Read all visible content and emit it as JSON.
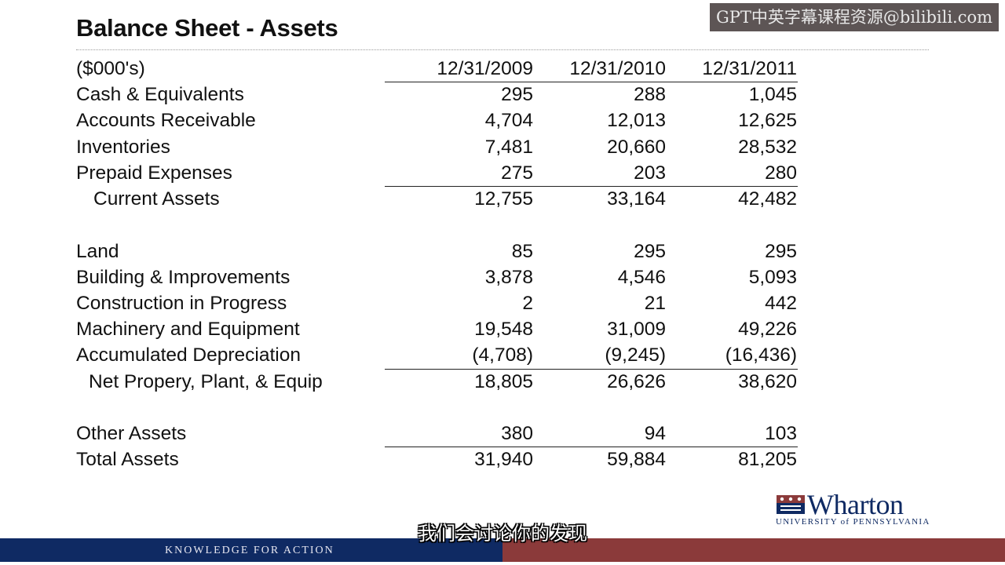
{
  "slide": {
    "title": "Balance Sheet - Assets",
    "watermark": "GPT中英字幕课程资源@bilibili.com",
    "subtitle": "我们会讨论你的发现",
    "footer_text": "KNOWLEDGE FOR ACTION",
    "logo": {
      "word": "Wharton",
      "sub": "UNIVERSITY of PENNSYLVANIA"
    }
  },
  "table": {
    "header": {
      "label": "($000's)",
      "cols": [
        "12/31/2009",
        "12/31/2010",
        "12/31/2011"
      ]
    },
    "rows": [
      {
        "label": "Cash & Equivalents",
        "values": [
          "295",
          "288",
          "1,045"
        ]
      },
      {
        "label": "Accounts Receivable",
        "values": [
          "4,704",
          "12,013",
          "12,625"
        ]
      },
      {
        "label": "Inventories",
        "values": [
          "7,481",
          "20,660",
          "28,532"
        ]
      },
      {
        "label": "Prepaid Expenses",
        "values": [
          "275",
          "203",
          "280"
        ]
      },
      {
        "label": "Current Assets",
        "values": [
          "12,755",
          "33,164",
          "42,482"
        ]
      },
      {
        "label": "Land",
        "values": [
          "85",
          "295",
          "295"
        ]
      },
      {
        "label": "Building & Improvements",
        "values": [
          "3,878",
          "4,546",
          "5,093"
        ]
      },
      {
        "label": "Construction in Progress",
        "values": [
          "2",
          "21",
          "442"
        ]
      },
      {
        "label": "Machinery and Equipment",
        "values": [
          "19,548",
          "31,009",
          "49,226"
        ]
      },
      {
        "label": "Accumulated Depreciation",
        "values": [
          "(4,708)",
          "(9,245)",
          "(16,436)"
        ]
      },
      {
        "label": "Net Propery, Plant, & Equip",
        "values": [
          "18,805",
          "26,626",
          "38,620"
        ]
      },
      {
        "label": "Other Assets",
        "values": [
          "380",
          "94",
          "103"
        ]
      },
      {
        "label": "Total Assets",
        "values": [
          "31,940",
          "59,884",
          "81,205"
        ]
      }
    ]
  },
  "colors": {
    "brand_blue": "#0f2a63",
    "brand_red": "#8b3a3a"
  }
}
